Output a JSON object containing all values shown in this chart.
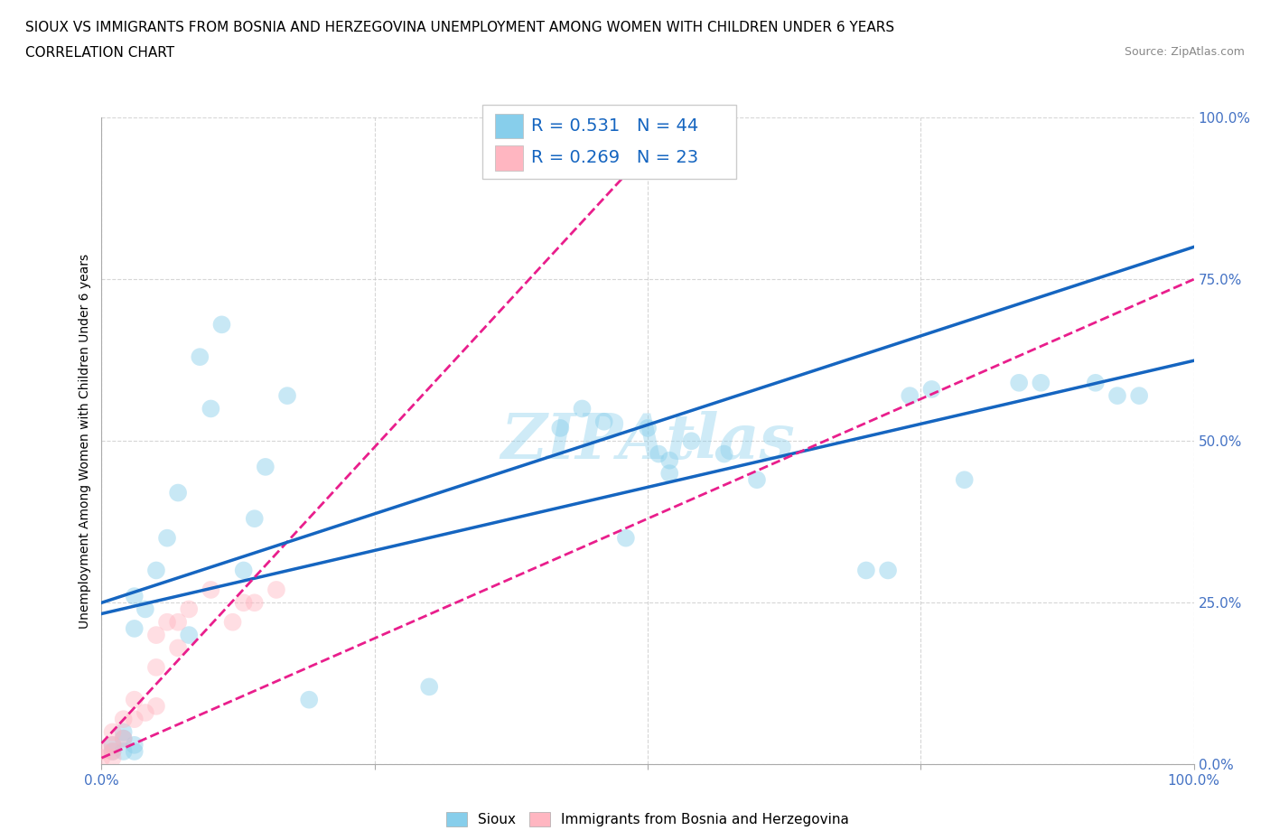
{
  "title_line1": "SIOUX VS IMMIGRANTS FROM BOSNIA AND HERZEGOVINA UNEMPLOYMENT AMONG WOMEN WITH CHILDREN UNDER 6 YEARS",
  "title_line2": "CORRELATION CHART",
  "source_text": "Source: ZipAtlas.com",
  "ylabel": "Unemployment Among Women with Children Under 6 years",
  "watermark": "ZIPAtlas",
  "xlim": [
    0,
    1.0
  ],
  "ylim": [
    0,
    1.0
  ],
  "xtick_labels": [
    "0.0%",
    "100.0%"
  ],
  "xtick_vals": [
    0.0,
    1.0
  ],
  "ytick_labels": [
    "0.0%",
    "25.0%",
    "50.0%",
    "75.0%",
    "100.0%"
  ],
  "ytick_vals": [
    0.0,
    0.25,
    0.5,
    0.75,
    1.0
  ],
  "sioux_color": "#87CEEB",
  "bosnia_color": "#FFB6C1",
  "trend_sioux_color": "#1565C0",
  "trend_bosnia_color": "#E91E8C",
  "R_sioux": 0.531,
  "N_sioux": 44,
  "R_bosnia": 0.269,
  "N_bosnia": 23,
  "sioux_x": [
    0.01,
    0.01,
    0.02,
    0.02,
    0.02,
    0.03,
    0.03,
    0.03,
    0.03,
    0.04,
    0.05,
    0.06,
    0.07,
    0.08,
    0.09,
    0.1,
    0.11,
    0.13,
    0.14,
    0.15,
    0.17,
    0.19,
    0.3,
    0.42,
    0.44,
    0.46,
    0.48,
    0.5,
    0.51,
    0.52,
    0.52,
    0.54,
    0.57,
    0.6,
    0.7,
    0.72,
    0.74,
    0.76,
    0.79,
    0.84,
    0.86,
    0.91,
    0.93,
    0.95
  ],
  "sioux_y": [
    0.02,
    0.03,
    0.02,
    0.04,
    0.05,
    0.02,
    0.03,
    0.21,
    0.26,
    0.24,
    0.3,
    0.35,
    0.42,
    0.2,
    0.63,
    0.55,
    0.68,
    0.3,
    0.38,
    0.46,
    0.57,
    0.1,
    0.12,
    0.52,
    0.55,
    0.53,
    0.35,
    0.52,
    0.48,
    0.45,
    0.47,
    0.5,
    0.48,
    0.44,
    0.3,
    0.3,
    0.57,
    0.58,
    0.44,
    0.59,
    0.59,
    0.59,
    0.57,
    0.57
  ],
  "bosnia_x": [
    0.0,
    0.0,
    0.01,
    0.01,
    0.01,
    0.01,
    0.02,
    0.02,
    0.03,
    0.03,
    0.04,
    0.05,
    0.05,
    0.05,
    0.06,
    0.07,
    0.07,
    0.08,
    0.1,
    0.12,
    0.13,
    0.14,
    0.16
  ],
  "bosnia_y": [
    0.01,
    0.02,
    0.01,
    0.02,
    0.03,
    0.05,
    0.04,
    0.07,
    0.07,
    0.1,
    0.08,
    0.09,
    0.15,
    0.2,
    0.22,
    0.18,
    0.22,
    0.24,
    0.27,
    0.22,
    0.25,
    0.25,
    0.27
  ],
  "marker_size": 200,
  "alpha_scatter": 0.45,
  "background_color": "#FFFFFF",
  "grid_color": "#CCCCCC",
  "title_fontsize": 11,
  "axis_label_fontsize": 10,
  "tick_fontsize": 11,
  "legend_fontsize": 14
}
